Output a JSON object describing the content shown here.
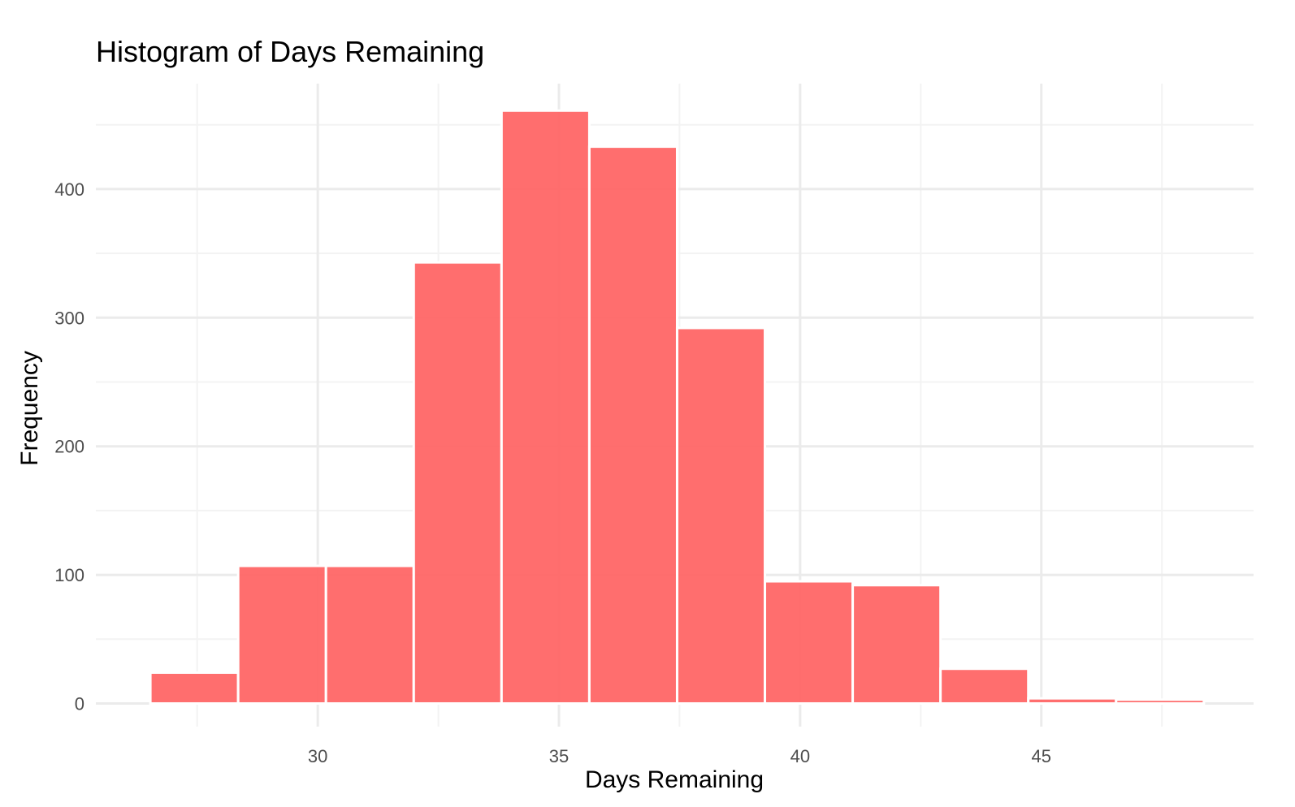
{
  "chart_data": {
    "type": "bar",
    "subtype": "histogram",
    "title": "Histogram of Days Remaining",
    "xlabel": "Days Remaining",
    "ylabel": "Frequency",
    "bin_width": 1.82,
    "bins": [
      {
        "start": 26.53,
        "end": 28.35,
        "count": 24
      },
      {
        "start": 28.35,
        "end": 30.17,
        "count": 107
      },
      {
        "start": 30.17,
        "end": 31.99,
        "count": 107
      },
      {
        "start": 31.99,
        "end": 33.81,
        "count": 343
      },
      {
        "start": 33.81,
        "end": 35.63,
        "count": 461
      },
      {
        "start": 35.63,
        "end": 37.45,
        "count": 433
      },
      {
        "start": 37.45,
        "end": 39.27,
        "count": 292
      },
      {
        "start": 39.27,
        "end": 41.09,
        "count": 95
      },
      {
        "start": 41.09,
        "end": 42.91,
        "count": 92
      },
      {
        "start": 42.91,
        "end": 44.73,
        "count": 27
      },
      {
        "start": 44.73,
        "end": 46.55,
        "count": 4
      },
      {
        "start": 46.55,
        "end": 48.37,
        "count": 3
      }
    ],
    "xlim": [
      25.4,
      49.4
    ],
    "ylim": [
      -18,
      482
    ],
    "x_ticks": [
      30,
      35,
      40,
      45
    ],
    "x_minor_ticks": [
      27.5,
      32.5,
      37.5,
      42.5,
      47.5
    ],
    "y_ticks": [
      0,
      100,
      200,
      300,
      400
    ],
    "y_minor_ticks": [
      50,
      150,
      250,
      350,
      450
    ],
    "grid": true,
    "legend": "none",
    "bar_color": "#ff6666",
    "bar_opacity": 0.95,
    "bar_outline_color": "#ffffff"
  }
}
